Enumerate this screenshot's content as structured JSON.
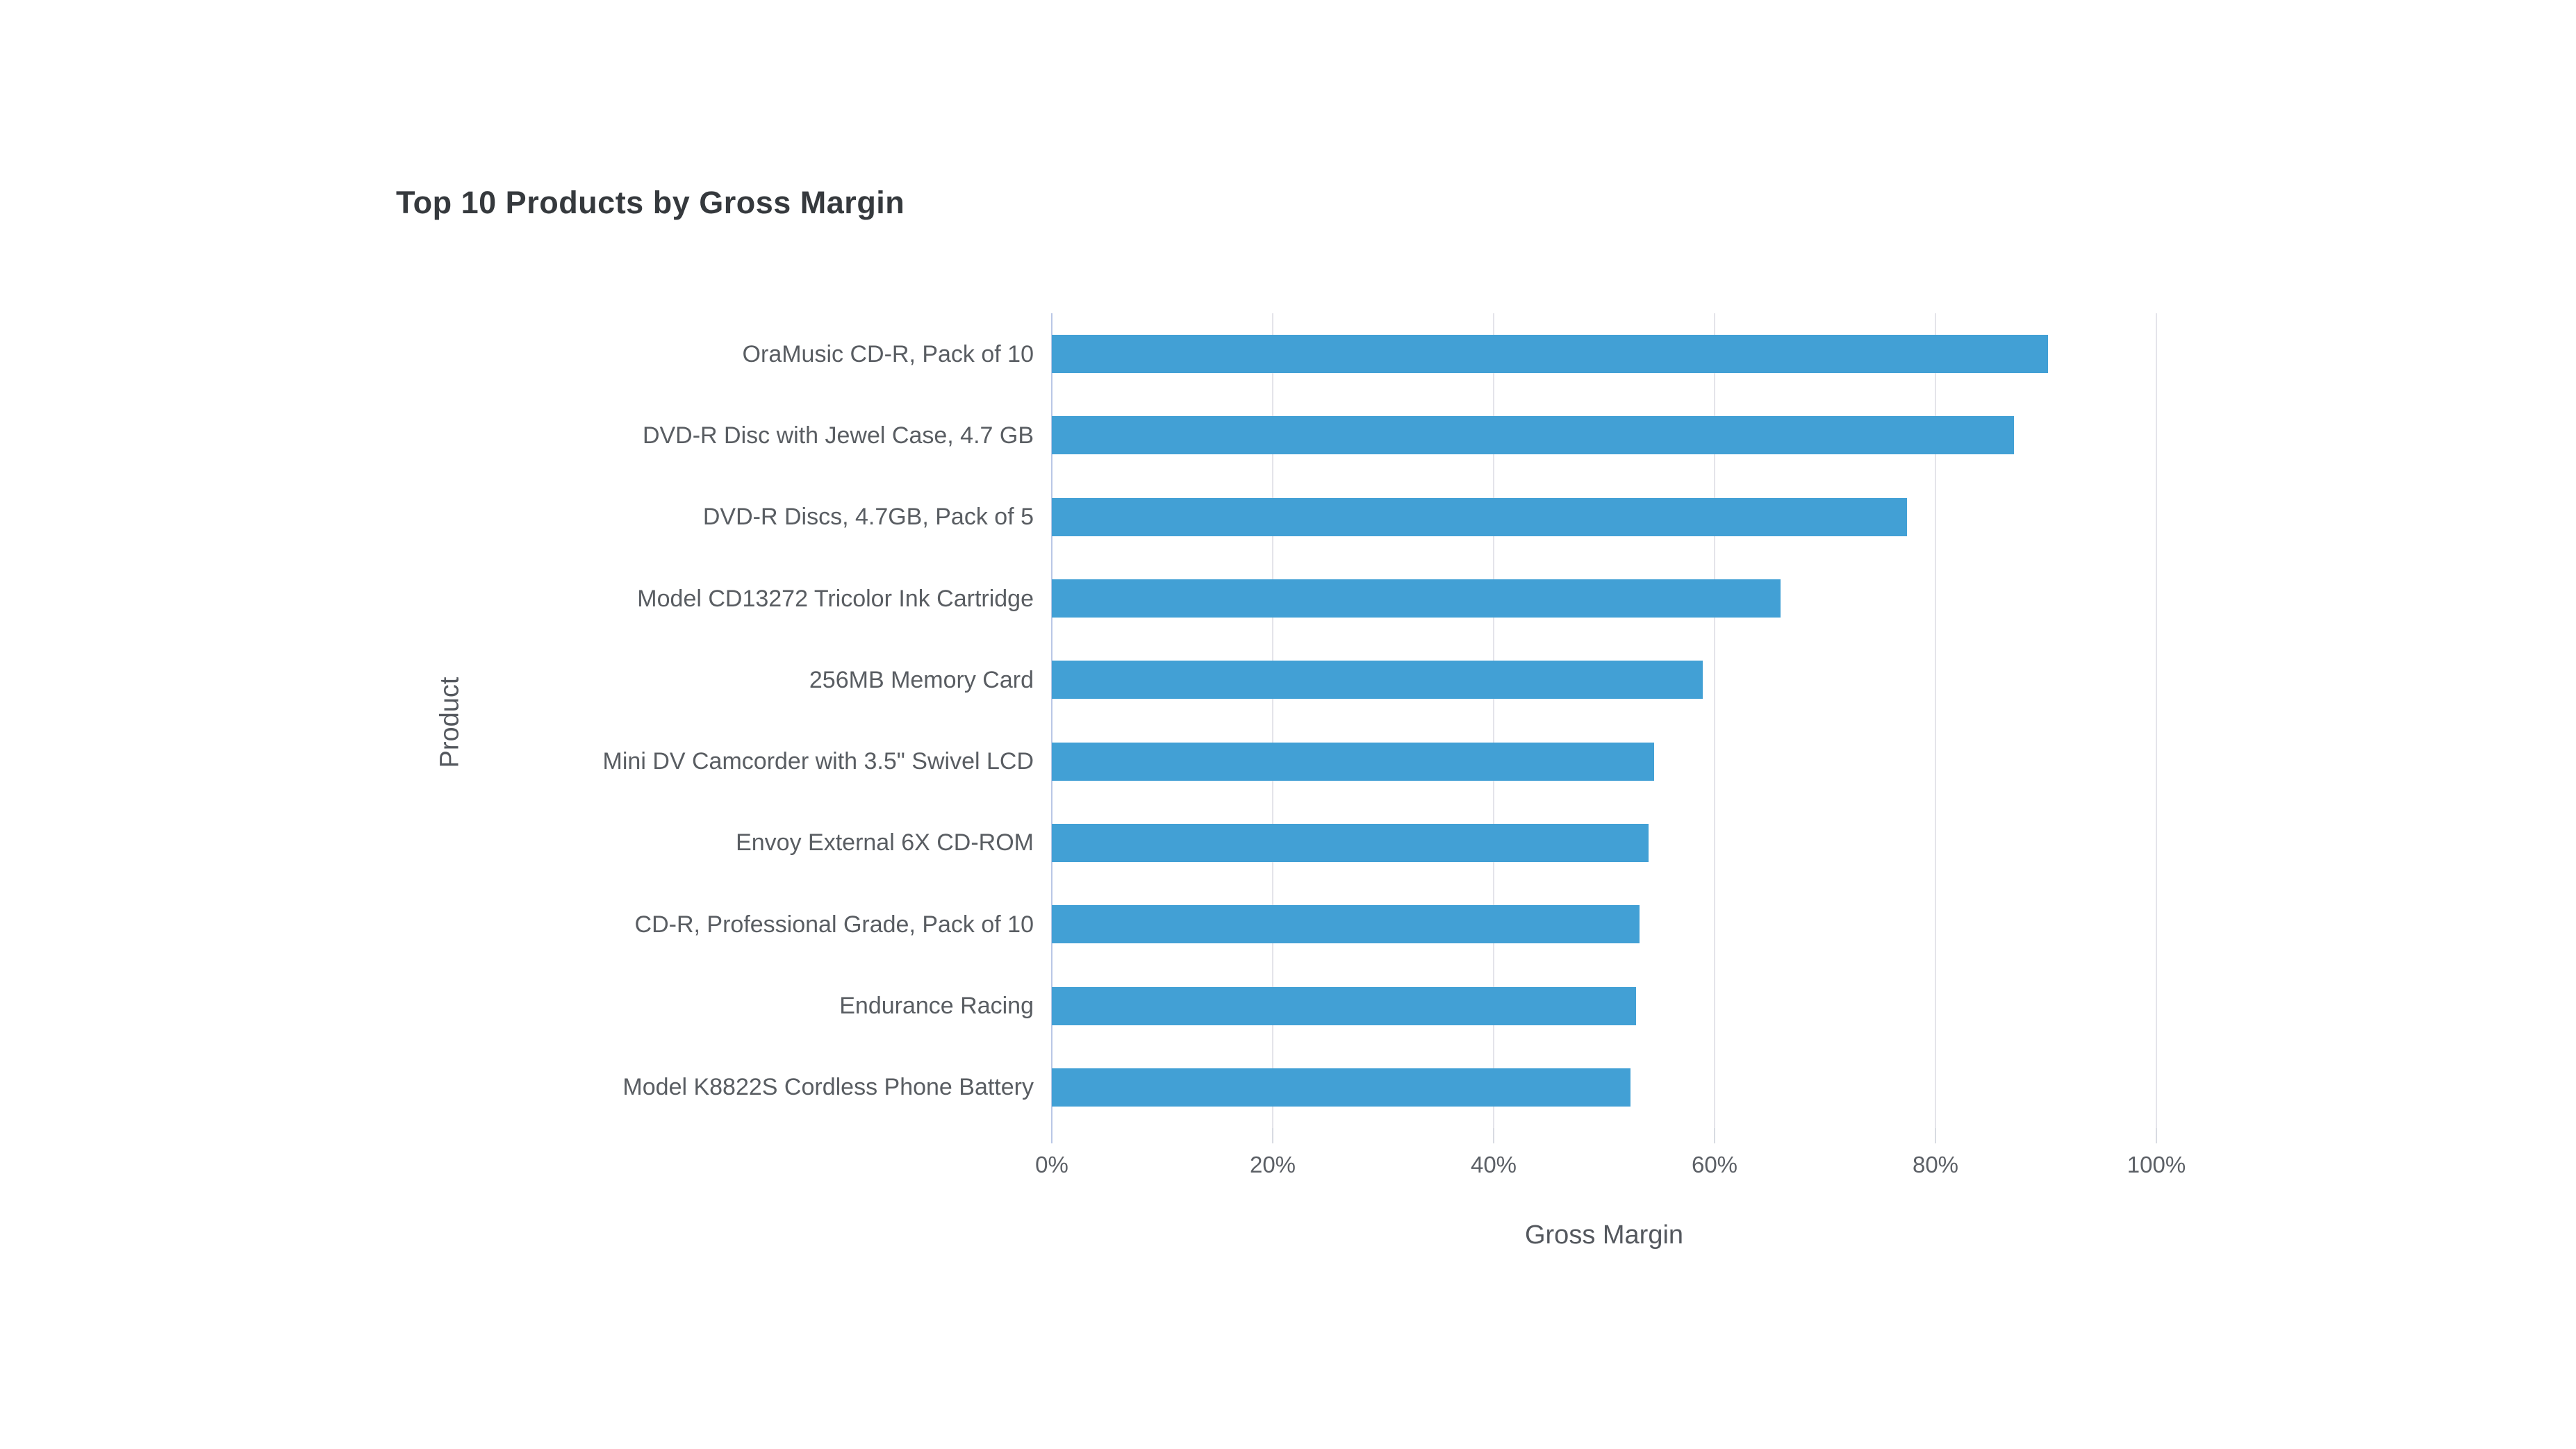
{
  "page": {
    "background": "#ffffff"
  },
  "chart_data": {
    "type": "bar",
    "orientation": "horizontal",
    "title": "Top 10 Products by Gross Margin",
    "xlabel": "Gross Margin",
    "ylabel": "Product",
    "categories": [
      "OraMusic CD-R, Pack of 10",
      "DVD-R Disc with Jewel Case, 4.7 GB",
      "DVD-R Discs, 4.7GB, Pack of 5",
      "Model CD13272 Tricolor Ink Cartridge",
      "256MB Memory Card",
      "Mini DV Camcorder with 3.5\" Swivel LCD",
      "Envoy External 6X CD-ROM",
      "CD-R, Professional Grade, Pack of 10",
      "Endurance Racing",
      "Model K8822S Cordless Phone Battery"
    ],
    "values": [
      90.2,
      87.1,
      77.4,
      66.0,
      58.9,
      54.5,
      54.0,
      53.2,
      52.9,
      52.4
    ],
    "value_unit": "%",
    "xlim": [
      0,
      100
    ],
    "x_ticks": [
      "0%",
      "20%",
      "40%",
      "60%",
      "80%",
      "100%"
    ],
    "x_tick_values": [
      0,
      20,
      40,
      60,
      80,
      100
    ],
    "grid": "vertical-only",
    "legend": "none",
    "colors": {
      "bar": "#42a0d5",
      "title_text": "#35393d",
      "label_text": "#595d62",
      "tick_text": "#5c6066",
      "axis_title_text": "#54585e",
      "gridline": "#e4e4ea",
      "zero_axis_line": "#b9c7e6",
      "tick_mark": "#d8dbe2"
    }
  }
}
